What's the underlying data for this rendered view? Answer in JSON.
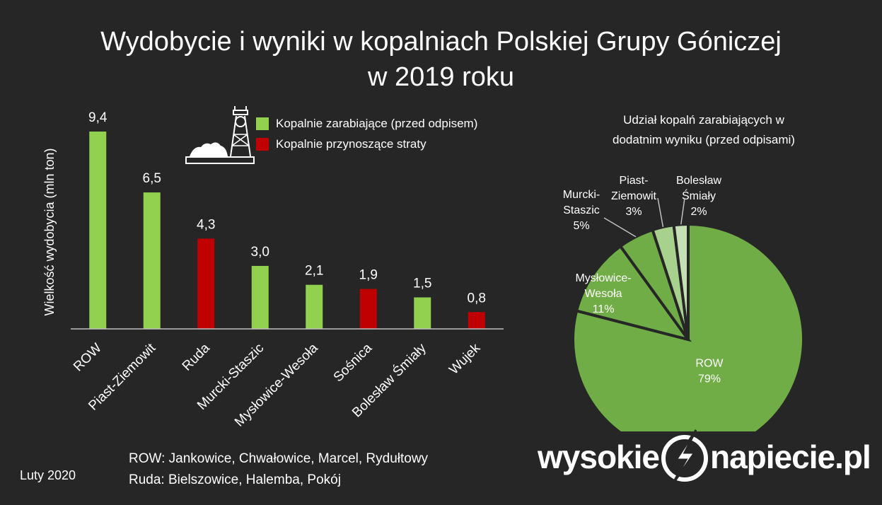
{
  "title": {
    "line1": "Wydobycie i wyniki w kopalniach Polskiej Grupy Góniczej",
    "line2": "w 2019 roku"
  },
  "legend": [
    {
      "label": "Kopalnie zarabiające (przed odpisem)",
      "color": "#92d050"
    },
    {
      "label": "Kopalnie przynoszące straty",
      "color": "#c00000"
    }
  ],
  "chart_data": [
    {
      "type": "bar",
      "ylabel": "Wielkość wydobycia (mln ton)",
      "categories": [
        "ROW",
        "Piast-Ziemowit",
        "Ruda",
        "Murcki-Staszic",
        "Mysłowice-Wesoła",
        "Sośnica",
        "Bolesław Śmiały",
        "Wujek"
      ],
      "values": [
        9.4,
        6.5,
        4.3,
        3.0,
        2.1,
        1.9,
        1.5,
        0.8
      ],
      "value_labels": [
        "9,4",
        "6,5",
        "4,3",
        "3,0",
        "2,1",
        "1,9",
        "1,5",
        "0,8"
      ],
      "status": [
        "profit",
        "profit",
        "loss",
        "profit",
        "profit",
        "loss",
        "profit",
        "loss"
      ],
      "ylim": [
        0,
        9.4
      ],
      "grid": false,
      "colors": {
        "profit": "#92d050",
        "loss": "#c00000"
      }
    },
    {
      "type": "pie",
      "title_line1": "Udział kopalń zarabiających w",
      "title_line2": "dodatnim wyniku (przed odpisami)",
      "slices": [
        {
          "name": "ROW",
          "value": 79,
          "label": "79%",
          "color": "#70ad47"
        },
        {
          "name": "Mysłowice-Wesoła",
          "value": 11,
          "label": "11%",
          "color": "#70ad47"
        },
        {
          "name": "Murcki-Staszic",
          "value": 5,
          "label": "5%",
          "color": "#70ad47"
        },
        {
          "name": "Piast-Ziemowit",
          "value": 3,
          "label": "3%",
          "color": "#a9d18e"
        },
        {
          "name": "Bolesław Śmiały",
          "value": 2,
          "label": "2%",
          "color": "#c5e0b4"
        }
      ]
    }
  ],
  "notes": {
    "row": "ROW: Jankowice, Chwałowice, Marcel, Rydułtowy",
    "ruda": "Ruda: Bielszowice, Halemba, Pokój"
  },
  "date": "Luty 2020",
  "logo": {
    "part1": "wysokie",
    "part2": "napiecie.pl"
  },
  "icons": {
    "mine": "mine-shaft-icon",
    "logo": "lightning-circle-icon"
  }
}
